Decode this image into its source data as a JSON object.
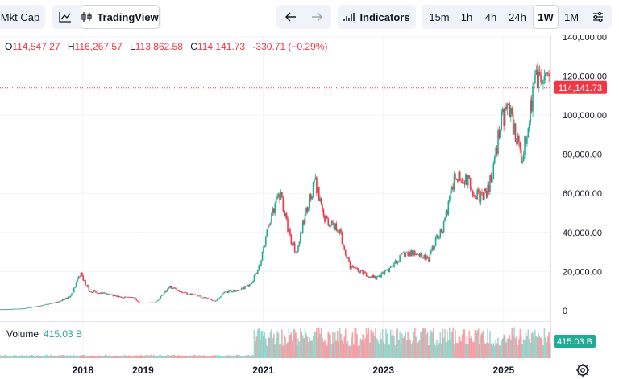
{
  "toolbar": {
    "mktcap_label": "Mkt Cap",
    "tradingview_label": "TradingView",
    "indicators_label": "Indicators",
    "timeframes": [
      "15m",
      "1h",
      "4h",
      "24h",
      "1W",
      "1M"
    ],
    "active_timeframe": "1W",
    "icons": [
      "line-chart-icon",
      "tradingview-icon",
      "back-arrow-icon",
      "forward-arrow-icon",
      "indicators-icon",
      "settings-sliders-icon"
    ]
  },
  "ohlc": {
    "o_label": "O",
    "o": "114,547.27",
    "h_label": "H",
    "h": "116,267.57",
    "l_label": "L",
    "l": "113,862.58",
    "c_label": "C",
    "c": "114,141.73",
    "change": "-330.71 (−0.29%)"
  },
  "volume": {
    "label": "Volume",
    "value": "415.03 B",
    "badge": "415.03 B"
  },
  "colors": {
    "up": "#22ab94",
    "down": "#f23645",
    "grid": "#f0f3fa",
    "price_line": "#f23645"
  },
  "chart_data": {
    "type": "candlestick",
    "y_axis": {
      "ticks": [
        0,
        20000,
        40000,
        60000,
        80000,
        100000,
        120000,
        140000
      ],
      "tick_labels": [
        "0",
        "20,000.00",
        "40,000.00",
        "60,000.00",
        "80,000.00",
        "100,000.00",
        "120,000.00",
        "140,000.00"
      ],
      "range": [
        -5000,
        140000
      ]
    },
    "x_axis": {
      "tick_labels": [
        "2018",
        "2019",
        "2021",
        "2023",
        "2025"
      ],
      "tick_positions": [
        2018.0,
        2019.0,
        2021.0,
        2023.0,
        2025.0
      ],
      "range": [
        2016.62,
        2025.78
      ]
    },
    "last_price": 114141.73,
    "last_price_label": "114,141.73",
    "price_path": [
      [
        2016.62,
        600
      ],
      [
        2017.0,
        1000
      ],
      [
        2017.3,
        2500
      ],
      [
        2017.6,
        4500
      ],
      [
        2017.8,
        7500
      ],
      [
        2017.96,
        19000
      ],
      [
        2018.1,
        10000
      ],
      [
        2018.3,
        9000
      ],
      [
        2018.6,
        7000
      ],
      [
        2018.85,
        6400
      ],
      [
        2018.95,
        3800
      ],
      [
        2019.2,
        4000
      ],
      [
        2019.45,
        12000
      ],
      [
        2019.7,
        9000
      ],
      [
        2019.95,
        7200
      ],
      [
        2020.2,
        5000
      ],
      [
        2020.35,
        9000
      ],
      [
        2020.65,
        11000
      ],
      [
        2020.8,
        13500
      ],
      [
        2020.95,
        24000
      ],
      [
        2021.1,
        45000
      ],
      [
        2021.28,
        60000
      ],
      [
        2021.45,
        37000
      ],
      [
        2021.55,
        30000
      ],
      [
        2021.75,
        55000
      ],
      [
        2021.87,
        66000
      ],
      [
        2022.0,
        47000
      ],
      [
        2022.25,
        42000
      ],
      [
        2022.45,
        22000
      ],
      [
        2022.6,
        20000
      ],
      [
        2022.88,
        16500
      ],
      [
        2023.1,
        21000
      ],
      [
        2023.3,
        28000
      ],
      [
        2023.55,
        30000
      ],
      [
        2023.75,
        26000
      ],
      [
        2023.88,
        37000
      ],
      [
        2024.0,
        43000
      ],
      [
        2024.2,
        70000
      ],
      [
        2024.4,
        66000
      ],
      [
        2024.6,
        58000
      ],
      [
        2024.72,
        60000
      ],
      [
        2024.85,
        75000
      ],
      [
        2024.95,
        98000
      ],
      [
        2025.1,
        102000
      ],
      [
        2025.25,
        84000
      ],
      [
        2025.3,
        77000
      ],
      [
        2025.45,
        105000
      ],
      [
        2025.55,
        118000
      ],
      [
        2025.65,
        112000
      ],
      [
        2025.72,
        118000
      ],
      [
        2025.78,
        114000
      ]
    ]
  }
}
